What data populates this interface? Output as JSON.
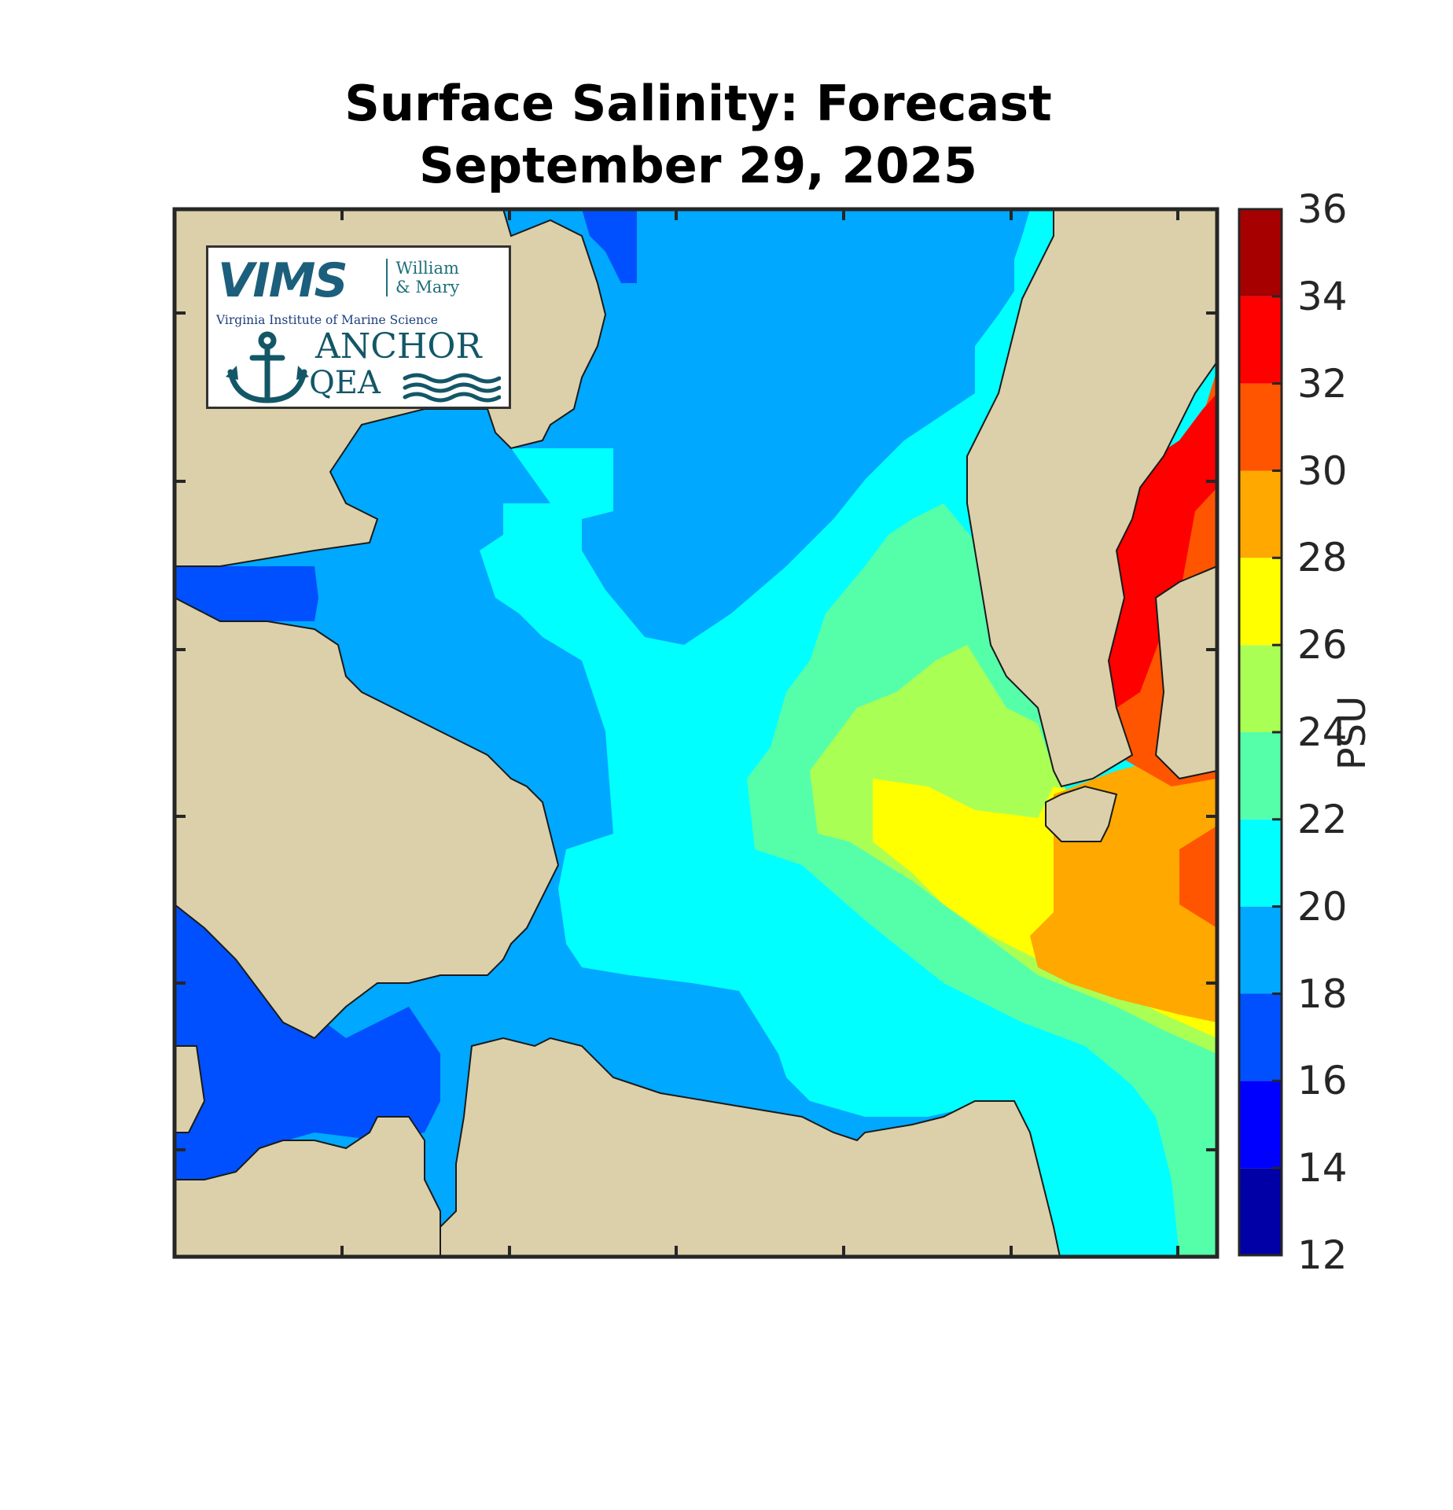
{
  "title_line1": "Surface Salinity: Forecast",
  "title_line2": "September 29, 2025",
  "colorbar": {
    "unit_label": "PSU",
    "ticks": [
      "36",
      "34",
      "32",
      "30",
      "28",
      "26",
      "24",
      "22",
      "20",
      "18",
      "16",
      "14",
      "12"
    ],
    "range": [
      12,
      36
    ],
    "bins": [
      {
        "min": 12,
        "max": 14,
        "color": "#0000a6"
      },
      {
        "min": 14,
        "max": 16,
        "color": "#0000ff"
      },
      {
        "min": 16,
        "max": 18,
        "color": "#0050ff"
      },
      {
        "min": 18,
        "max": 20,
        "color": "#00a8ff"
      },
      {
        "min": 20,
        "max": 22,
        "color": "#00ffff"
      },
      {
        "min": 22,
        "max": 24,
        "color": "#55ffaa"
      },
      {
        "min": 24,
        "max": 26,
        "color": "#aaff55"
      },
      {
        "min": 26,
        "max": 28,
        "color": "#ffff00"
      },
      {
        "min": 28,
        "max": 30,
        "color": "#ffa800"
      },
      {
        "min": 30,
        "max": 32,
        "color": "#ff5500"
      },
      {
        "min": 32,
        "max": 34,
        "color": "#ff0000"
      },
      {
        "min": 34,
        "max": 36,
        "color": "#a60000"
      }
    ]
  },
  "land_color": "#dcd0aa",
  "logo": {
    "vims": "VIMS",
    "wm_line1": "William",
    "wm_line2": "& Mary",
    "subtitle": "Virginia Institute of Marine Science",
    "anchor": "ANCHOR",
    "qea": "QEA"
  }
}
